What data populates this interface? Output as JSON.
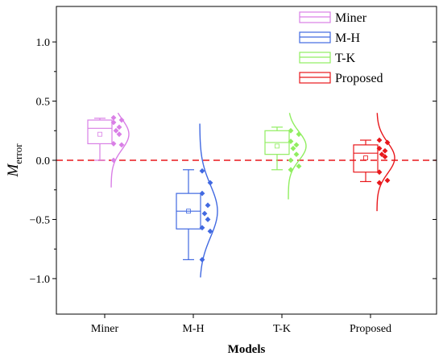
{
  "chart_data": {
    "type": "box",
    "xlabel": "Models",
    "ylabel_main": "M",
    "ylabel_sub": "error",
    "ylim": [
      -1.3,
      1.3
    ],
    "yticks": [
      1.0,
      0.5,
      0.0,
      -0.5,
      -1.0
    ],
    "ytick_labels": [
      "1.0",
      "0.5",
      "0.0",
      "−0.5",
      "−1.0"
    ],
    "categories": [
      "Miner",
      "M-H",
      "T-K",
      "Proposed"
    ],
    "reference_line": 0,
    "legend_position": "top-right",
    "series": [
      {
        "name": "Miner",
        "color": "#d97fe6",
        "box": {
          "min": 0.0,
          "q1": 0.14,
          "median": 0.27,
          "q3": 0.34,
          "max": 0.355,
          "mean": 0.22
        },
        "points": [
          0.36,
          0.34,
          0.32,
          0.28,
          0.25,
          0.22,
          0.14,
          0.13,
          0.0
        ],
        "curve": {
          "mean": 0.22,
          "sd": 0.13,
          "ymin": -0.23,
          "ymax": 0.4
        }
      },
      {
        "name": "M-H",
        "color": "#4169e1",
        "box": {
          "min": -0.84,
          "q1": -0.58,
          "median": -0.43,
          "q3": -0.28,
          "max": -0.08,
          "mean": -0.43
        },
        "points": [
          -0.09,
          -0.19,
          -0.28,
          -0.38,
          -0.45,
          -0.5,
          -0.57,
          -0.6,
          -0.84
        ],
        "curve": {
          "mean": -0.43,
          "sd": 0.22,
          "ymin": -0.99,
          "ymax": 0.31
        }
      },
      {
        "name": "T-K",
        "color": "#90ee60",
        "box": {
          "min": -0.08,
          "q1": 0.05,
          "median": 0.15,
          "q3": 0.25,
          "max": 0.28,
          "mean": 0.12
        },
        "points": [
          0.25,
          0.22,
          0.16,
          0.13,
          0.1,
          0.05,
          0.0,
          -0.05,
          -0.08
        ],
        "curve": {
          "mean": 0.12,
          "sd": 0.12,
          "ymin": -0.33,
          "ymax": 0.4
        }
      },
      {
        "name": "Proposed",
        "color": "#e8171b",
        "box": {
          "min": -0.18,
          "q1": -0.1,
          "median": 0.06,
          "q3": 0.13,
          "max": 0.17,
          "mean": 0.02
        },
        "points": [
          0.17,
          0.15,
          0.1,
          0.08,
          0.05,
          0.03,
          -0.1,
          -0.17,
          -0.19
        ],
        "curve": {
          "mean": 0.02,
          "sd": 0.13,
          "ymin": -0.43,
          "ymax": 0.4
        }
      }
    ]
  }
}
